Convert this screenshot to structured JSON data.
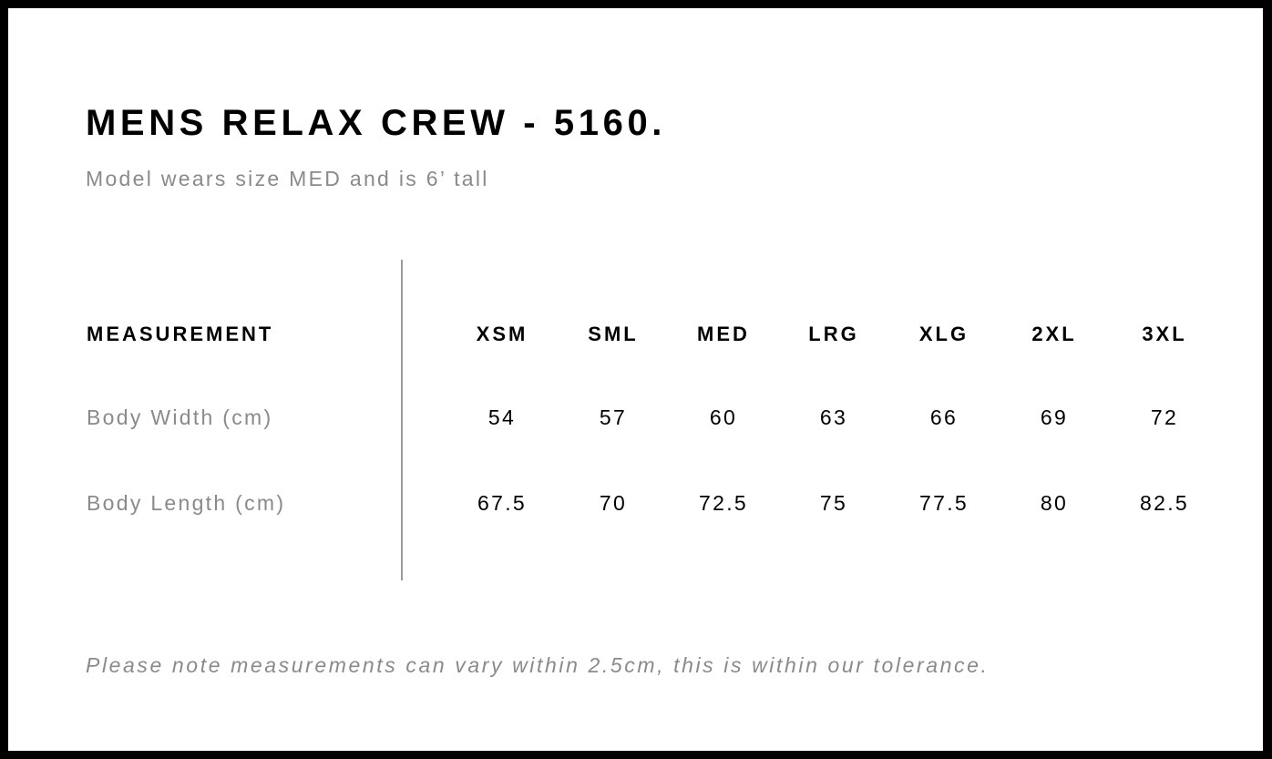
{
  "title": "MENS RELAX CREW - 5160.",
  "subtitle": "Model wears size MED and is 6’ tall",
  "table": {
    "header_label": "MEASUREMENT",
    "sizes": [
      "XSM",
      "SML",
      "MED",
      "LRG",
      "XLG",
      "2XL",
      "3XL"
    ],
    "rows": [
      {
        "label": "Body Width (cm)",
        "values": [
          "54",
          "57",
          "60",
          "63",
          "66",
          "69",
          "72"
        ]
      },
      {
        "label": "Body Length (cm)",
        "values": [
          "67.5",
          "70",
          "72.5",
          "75",
          "77.5",
          "80",
          "82.5"
        ]
      }
    ]
  },
  "note": "Please note measurements can vary within 2.5cm, this is within our tolerance."
}
